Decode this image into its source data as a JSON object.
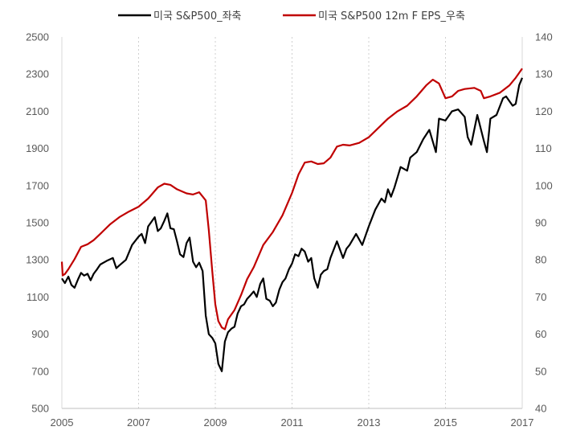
{
  "chart_data": {
    "type": "line",
    "title": "",
    "x_range": [
      2005,
      2017
    ],
    "x_ticks": [
      2005,
      2007,
      2009,
      2011,
      2013,
      2015,
      2017
    ],
    "y_left": {
      "range": [
        500,
        2500
      ],
      "ticks": [
        500,
        700,
        900,
        1100,
        1300,
        1500,
        1700,
        1900,
        2100,
        2300,
        2500
      ]
    },
    "y_right": {
      "range": [
        40,
        140
      ],
      "ticks": [
        40,
        50,
        60,
        70,
        80,
        90,
        100,
        110,
        120,
        130,
        140
      ]
    },
    "grid": "vertical dashed at x ticks",
    "legend_position": "top",
    "series": [
      {
        "name": "미국 S&P500_좌축",
        "axis": "left",
        "color": "#000000",
        "points": [
          [
            2005.0,
            1200
          ],
          [
            2005.08,
            1175
          ],
          [
            2005.17,
            1210
          ],
          [
            2005.25,
            1165
          ],
          [
            2005.33,
            1150
          ],
          [
            2005.42,
            1195
          ],
          [
            2005.5,
            1230
          ],
          [
            2005.58,
            1215
          ],
          [
            2005.67,
            1225
          ],
          [
            2005.75,
            1190
          ],
          [
            2005.83,
            1225
          ],
          [
            2005.92,
            1250
          ],
          [
            2006.0,
            1275
          ],
          [
            2006.17,
            1295
          ],
          [
            2006.33,
            1310
          ],
          [
            2006.42,
            1255
          ],
          [
            2006.5,
            1270
          ],
          [
            2006.67,
            1300
          ],
          [
            2006.83,
            1380
          ],
          [
            2007.0,
            1425
          ],
          [
            2007.08,
            1440
          ],
          [
            2007.17,
            1390
          ],
          [
            2007.25,
            1480
          ],
          [
            2007.42,
            1530
          ],
          [
            2007.5,
            1455
          ],
          [
            2007.58,
            1470
          ],
          [
            2007.67,
            1510
          ],
          [
            2007.75,
            1550
          ],
          [
            2007.83,
            1470
          ],
          [
            2007.92,
            1465
          ],
          [
            2008.0,
            1400
          ],
          [
            2008.08,
            1330
          ],
          [
            2008.17,
            1315
          ],
          [
            2008.25,
            1390
          ],
          [
            2008.33,
            1420
          ],
          [
            2008.42,
            1290
          ],
          [
            2008.5,
            1260
          ],
          [
            2008.58,
            1285
          ],
          [
            2008.67,
            1240
          ],
          [
            2008.75,
            1000
          ],
          [
            2008.83,
            900
          ],
          [
            2008.92,
            880
          ],
          [
            2009.0,
            850
          ],
          [
            2009.08,
            740
          ],
          [
            2009.17,
            700
          ],
          [
            2009.25,
            860
          ],
          [
            2009.33,
            910
          ],
          [
            2009.42,
            930
          ],
          [
            2009.5,
            940
          ],
          [
            2009.58,
            1010
          ],
          [
            2009.67,
            1050
          ],
          [
            2009.75,
            1060
          ],
          [
            2009.83,
            1090
          ],
          [
            2009.92,
            1110
          ],
          [
            2010.0,
            1130
          ],
          [
            2010.08,
            1100
          ],
          [
            2010.17,
            1170
          ],
          [
            2010.25,
            1200
          ],
          [
            2010.33,
            1090
          ],
          [
            2010.42,
            1080
          ],
          [
            2010.5,
            1050
          ],
          [
            2010.58,
            1070
          ],
          [
            2010.67,
            1140
          ],
          [
            2010.75,
            1180
          ],
          [
            2010.83,
            1200
          ],
          [
            2010.92,
            1250
          ],
          [
            2011.0,
            1280
          ],
          [
            2011.08,
            1330
          ],
          [
            2011.17,
            1320
          ],
          [
            2011.25,
            1360
          ],
          [
            2011.33,
            1345
          ],
          [
            2011.42,
            1290
          ],
          [
            2011.5,
            1310
          ],
          [
            2011.58,
            1200
          ],
          [
            2011.67,
            1150
          ],
          [
            2011.75,
            1220
          ],
          [
            2011.83,
            1240
          ],
          [
            2011.92,
            1250
          ],
          [
            2012.0,
            1310
          ],
          [
            2012.17,
            1400
          ],
          [
            2012.33,
            1310
          ],
          [
            2012.42,
            1360
          ],
          [
            2012.5,
            1380
          ],
          [
            2012.67,
            1440
          ],
          [
            2012.83,
            1380
          ],
          [
            2013.0,
            1480
          ],
          [
            2013.17,
            1570
          ],
          [
            2013.33,
            1630
          ],
          [
            2013.42,
            1610
          ],
          [
            2013.5,
            1680
          ],
          [
            2013.58,
            1640
          ],
          [
            2013.67,
            1690
          ],
          [
            2013.83,
            1800
          ],
          [
            2014.0,
            1780
          ],
          [
            2014.08,
            1850
          ],
          [
            2014.25,
            1880
          ],
          [
            2014.42,
            1950
          ],
          [
            2014.58,
            2000
          ],
          [
            2014.75,
            1880
          ],
          [
            2014.83,
            2060
          ],
          [
            2015.0,
            2050
          ],
          [
            2015.17,
            2100
          ],
          [
            2015.33,
            2110
          ],
          [
            2015.5,
            2070
          ],
          [
            2015.58,
            1960
          ],
          [
            2015.67,
            1920
          ],
          [
            2015.83,
            2080
          ],
          [
            2016.0,
            1940
          ],
          [
            2016.08,
            1880
          ],
          [
            2016.17,
            2060
          ],
          [
            2016.33,
            2080
          ],
          [
            2016.5,
            2170
          ],
          [
            2016.58,
            2180
          ],
          [
            2016.75,
            2130
          ],
          [
            2016.83,
            2140
          ],
          [
            2016.92,
            2240
          ],
          [
            2017.0,
            2280
          ]
        ]
      },
      {
        "name": "미국 S&P500 12m F EPS_우축",
        "axis": "right",
        "color": "#c00000",
        "points": [
          [
            2005.0,
            79.5
          ],
          [
            2005.02,
            75.8
          ],
          [
            2005.08,
            76.2
          ],
          [
            2005.17,
            77.5
          ],
          [
            2005.33,
            80.2
          ],
          [
            2005.5,
            83.5
          ],
          [
            2005.67,
            84.2
          ],
          [
            2005.83,
            85.3
          ],
          [
            2006.0,
            87.0
          ],
          [
            2006.25,
            89.5
          ],
          [
            2006.5,
            91.5
          ],
          [
            2006.75,
            93.0
          ],
          [
            2007.0,
            94.3
          ],
          [
            2007.25,
            96.5
          ],
          [
            2007.5,
            99.5
          ],
          [
            2007.67,
            100.5
          ],
          [
            2007.83,
            100.2
          ],
          [
            2008.0,
            99.0
          ],
          [
            2008.25,
            97.9
          ],
          [
            2008.42,
            97.6
          ],
          [
            2008.58,
            98.2
          ],
          [
            2008.75,
            96.0
          ],
          [
            2008.83,
            88.0
          ],
          [
            2008.92,
            77.0
          ],
          [
            2009.0,
            68.0
          ],
          [
            2009.08,
            63.5
          ],
          [
            2009.17,
            61.8
          ],
          [
            2009.25,
            61.3
          ],
          [
            2009.33,
            64.0
          ],
          [
            2009.5,
            66.5
          ],
          [
            2009.67,
            70.5
          ],
          [
            2009.83,
            74.8
          ],
          [
            2010.0,
            78.0
          ],
          [
            2010.25,
            84.0
          ],
          [
            2010.5,
            87.5
          ],
          [
            2010.75,
            92.0
          ],
          [
            2011.0,
            98.0
          ],
          [
            2011.17,
            103.0
          ],
          [
            2011.33,
            106.2
          ],
          [
            2011.5,
            106.5
          ],
          [
            2011.67,
            105.8
          ],
          [
            2011.83,
            106.0
          ],
          [
            2012.0,
            107.5
          ],
          [
            2012.17,
            110.5
          ],
          [
            2012.33,
            111.0
          ],
          [
            2012.5,
            110.8
          ],
          [
            2012.75,
            111.5
          ],
          [
            2013.0,
            113.0
          ],
          [
            2013.25,
            115.5
          ],
          [
            2013.5,
            118.0
          ],
          [
            2013.75,
            120.0
          ],
          [
            2014.0,
            121.5
          ],
          [
            2014.25,
            124.0
          ],
          [
            2014.5,
            127.0
          ],
          [
            2014.67,
            128.5
          ],
          [
            2014.83,
            127.5
          ],
          [
            2015.0,
            123.5
          ],
          [
            2015.17,
            124.0
          ],
          [
            2015.33,
            125.5
          ],
          [
            2015.5,
            126.0
          ],
          [
            2015.75,
            126.3
          ],
          [
            2015.92,
            125.5
          ],
          [
            2016.0,
            123.5
          ],
          [
            2016.17,
            124.0
          ],
          [
            2016.42,
            125.0
          ],
          [
            2016.67,
            127.0
          ],
          [
            2016.83,
            129.0
          ],
          [
            2017.0,
            131.5
          ]
        ]
      }
    ]
  }
}
